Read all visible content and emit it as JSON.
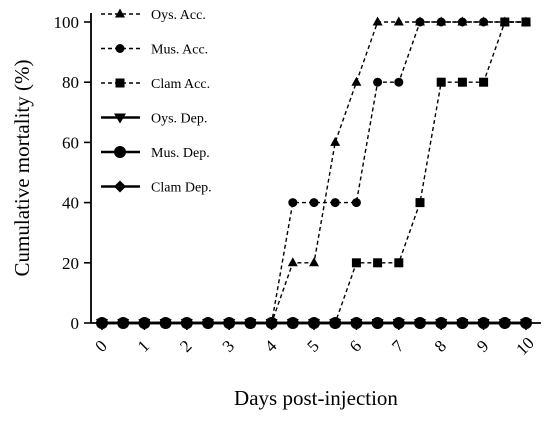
{
  "chart_data": {
    "type": "line",
    "xlabel": "Days post-injection",
    "ylabel": "Cumulative mortality  (%)",
    "xlim": [
      0,
      10
    ],
    "ylim": [
      0,
      100
    ],
    "x_ticks": [
      "0",
      "1",
      "2",
      "3",
      "4",
      "5",
      "6",
      "7",
      "8",
      "9",
      "10"
    ],
    "y_ticks": [
      "0",
      "20",
      "40",
      "60",
      "80",
      "100"
    ],
    "grid": false,
    "legend_position": "top-left",
    "series": [
      {
        "name": "Oys. Acc.",
        "marker": "triangle-up",
        "line_style": "dashed",
        "x": [
          0,
          0.5,
          1,
          1.5,
          2,
          2.5,
          3,
          3.5,
          4,
          4.5,
          5,
          5.5,
          6,
          6.5,
          7,
          7.5,
          8,
          8.5,
          9,
          9.5,
          10
        ],
        "y": [
          0,
          0,
          0,
          0,
          0,
          0,
          0,
          0,
          0,
          20,
          20,
          60,
          80,
          100,
          100,
          100,
          100,
          100,
          100,
          100,
          100
        ]
      },
      {
        "name": "Mus. Acc.",
        "marker": "circle",
        "line_style": "dashed",
        "x": [
          0,
          0.5,
          1,
          1.5,
          2,
          2.5,
          3,
          3.5,
          4,
          4.5,
          5,
          5.5,
          6,
          6.5,
          7,
          7.5,
          8,
          8.5,
          9,
          9.5,
          10
        ],
        "y": [
          0,
          0,
          0,
          0,
          0,
          0,
          0,
          0,
          0,
          40,
          40,
          40,
          40,
          80,
          80,
          100,
          100,
          100,
          100,
          100,
          100
        ]
      },
      {
        "name": "Clam Acc.",
        "marker": "square",
        "line_style": "dashed",
        "x": [
          0,
          0.5,
          1,
          1.5,
          2,
          2.5,
          3,
          3.5,
          4,
          4.5,
          5,
          5.5,
          6,
          6.5,
          7,
          7.5,
          8,
          8.5,
          9,
          9.5,
          10
        ],
        "y": [
          0,
          0,
          0,
          0,
          0,
          0,
          0,
          0,
          0,
          0,
          0,
          0,
          20,
          20,
          20,
          40,
          80,
          80,
          80,
          100,
          100
        ]
      },
      {
        "name": "Oys. Dep.",
        "marker": "triangle-down",
        "line_style": "solid",
        "x": [
          0,
          0.5,
          1,
          1.5,
          2,
          2.5,
          3,
          3.5,
          4,
          4.5,
          5,
          5.5,
          6,
          6.5,
          7,
          7.5,
          8,
          8.5,
          9,
          9.5,
          10
        ],
        "y": [
          0,
          0,
          0,
          0,
          0,
          0,
          0,
          0,
          0,
          0,
          0,
          0,
          0,
          0,
          0,
          0,
          0,
          0,
          0,
          0,
          0
        ]
      },
      {
        "name": "Mus. Dep.",
        "marker": "circle-large",
        "line_style": "solid",
        "x": [
          0,
          0.5,
          1,
          1.5,
          2,
          2.5,
          3,
          3.5,
          4,
          4.5,
          5,
          5.5,
          6,
          6.5,
          7,
          7.5,
          8,
          8.5,
          9,
          9.5,
          10
        ],
        "y": [
          0,
          0,
          0,
          0,
          0,
          0,
          0,
          0,
          0,
          0,
          0,
          0,
          0,
          0,
          0,
          0,
          0,
          0,
          0,
          0,
          0
        ]
      },
      {
        "name": "Clam Dep.",
        "marker": "diamond",
        "line_style": "solid",
        "x": [
          0,
          0.5,
          1,
          1.5,
          2,
          2.5,
          3,
          3.5,
          4,
          4.5,
          5,
          5.5,
          6,
          6.5,
          7,
          7.5,
          8,
          8.5,
          9,
          9.5,
          10
        ],
        "y": [
          0,
          0,
          0,
          0,
          0,
          0,
          0,
          0,
          0,
          0,
          0,
          0,
          0,
          0,
          0,
          0,
          0,
          0,
          0,
          0,
          0
        ]
      }
    ],
    "colors": {
      "line": "#000000",
      "marker": "#000000"
    }
  }
}
